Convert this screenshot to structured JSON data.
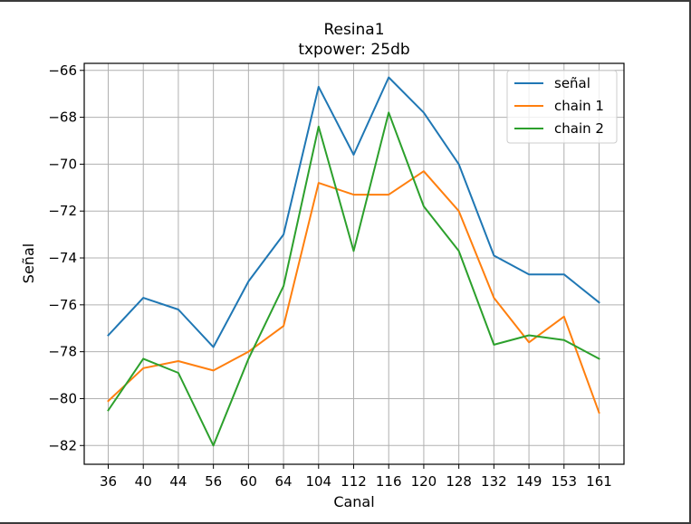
{
  "chart_data": {
    "type": "line",
    "title": "Resina1",
    "subtitle": "txpower: 25db",
    "xlabel": "Canal",
    "ylabel": "Señal",
    "categories": [
      "36",
      "40",
      "44",
      "56",
      "60",
      "64",
      "104",
      "112",
      "116",
      "120",
      "128",
      "132",
      "149",
      "153",
      "161"
    ],
    "ylim": [
      -82.8,
      -65.7
    ],
    "yticks": [
      -66,
      -68,
      -70,
      -72,
      -74,
      -76,
      -78,
      -80,
      -82
    ],
    "ytick_labels": [
      "−66",
      "−68",
      "−70",
      "−72",
      "−74",
      "−76",
      "−78",
      "−80",
      "−82"
    ],
    "grid": true,
    "legend_position": "top-right",
    "series": [
      {
        "name": "señal",
        "color": "#1f77b4",
        "values": [
          -77.3,
          -75.7,
          -76.2,
          -77.8,
          -75.0,
          -73.0,
          -66.7,
          -69.6,
          -66.3,
          -67.8,
          -70.0,
          -73.9,
          -74.7,
          -74.7,
          -75.9
        ]
      },
      {
        "name": "chain 1",
        "color": "#ff7f0e",
        "values": [
          -80.1,
          -78.7,
          -78.4,
          -78.8,
          -78.0,
          -76.9,
          -70.8,
          -71.3,
          -71.3,
          -70.3,
          -72.0,
          -75.7,
          -77.6,
          -76.5,
          -80.6
        ]
      },
      {
        "name": "chain 2",
        "color": "#2ca02c",
        "values": [
          -80.5,
          -78.3,
          -78.9,
          -82.0,
          -78.3,
          -75.2,
          -68.4,
          -73.7,
          -67.8,
          -71.8,
          -73.7,
          -77.7,
          -77.3,
          -77.5,
          -78.3
        ]
      }
    ]
  }
}
